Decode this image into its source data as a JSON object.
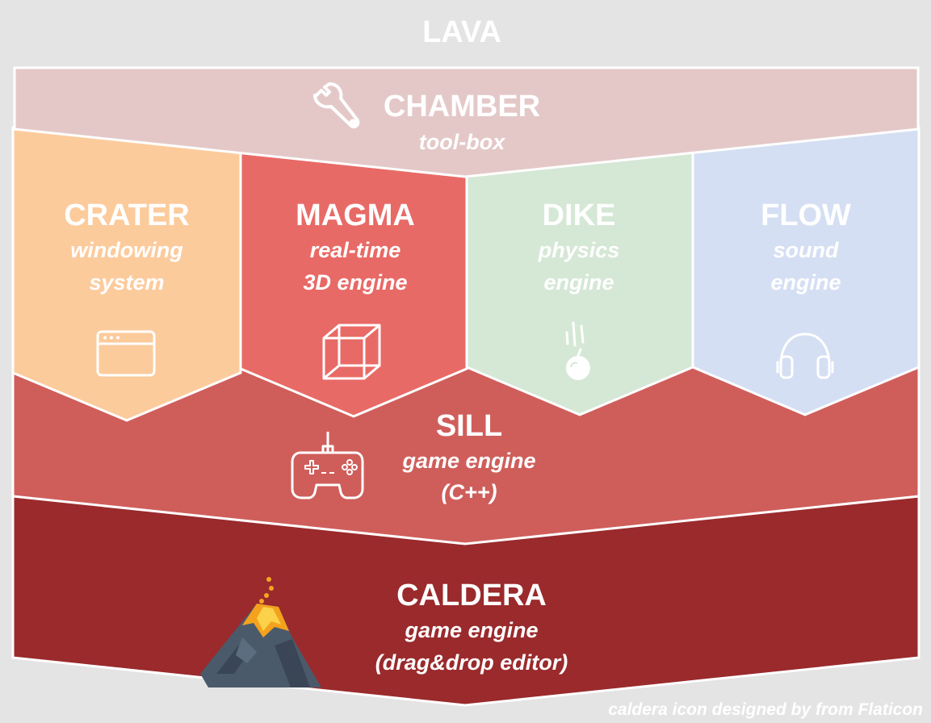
{
  "title": "LAVA",
  "credit": "caldera icon designed by from Flaticon",
  "colors": {
    "background": "#e4e4e4",
    "chamber": "#e4c8c8",
    "crater": "#fccb9c",
    "magma": "#e86a66",
    "dike": "#d5e7d5",
    "flow": "#d5dff3",
    "sill": "#cf5e5b",
    "caldera": "#9a2a2c",
    "text": "#ffffff"
  },
  "layers": {
    "chamber": {
      "name": "CHAMBER",
      "subtitle": "tool-box",
      "icon": "wrench-icon"
    },
    "crater": {
      "name": "CRATER",
      "subtitle_line1": "windowing",
      "subtitle_line2": "system",
      "icon": "browser-window-icon"
    },
    "magma": {
      "name": "MAGMA",
      "subtitle_line1": "real-time",
      "subtitle_line2": "3D engine",
      "icon": "cube-icon"
    },
    "dike": {
      "name": "DIKE",
      "subtitle_line1": "physics",
      "subtitle_line2": "engine",
      "icon": "falling-apple-icon"
    },
    "flow": {
      "name": "FLOW",
      "subtitle_line1": "sound",
      "subtitle_line2": "engine",
      "icon": "headphones-icon"
    },
    "sill": {
      "name": "SILL",
      "subtitle_line1": "game engine",
      "subtitle_line2": "(C++)",
      "icon": "gamepad-icon"
    },
    "caldera": {
      "name": "CALDERA",
      "subtitle_line1": "game engine",
      "subtitle_line2": "(drag&drop editor)",
      "icon": "volcano-icon"
    }
  }
}
